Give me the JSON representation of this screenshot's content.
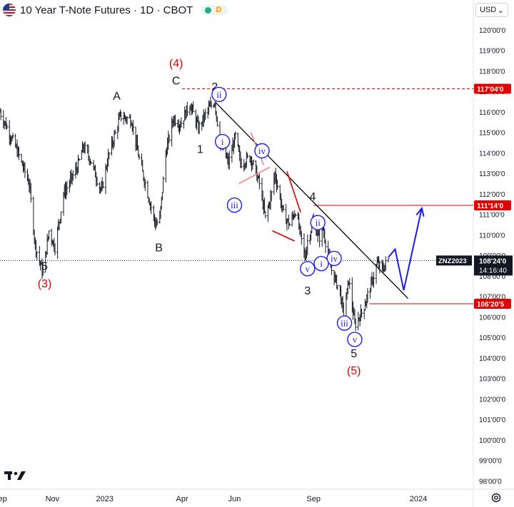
{
  "header": {
    "title": "10 Year T-Note Futures · 1D · CBOT",
    "status_badge": "D"
  },
  "currency_selector": {
    "label": "USD"
  },
  "footer": {
    "logo": "TV"
  },
  "colors": {
    "price_bars": "#131722",
    "wave_red": "#e00000",
    "wave_blue": "#1a1aff",
    "trendline": "#000000",
    "axis_text": "#131722"
  },
  "chart_data": {
    "type": "ohlc",
    "y_axis": {
      "ylim": [
        97.6,
        120.55
      ],
      "ticks": [
        "120'00'0",
        "119'00'0",
        "118'00'0",
        "117'00'0",
        "116'00'0",
        "115'00'0",
        "114'00'0",
        "113'00'0",
        "112'00'0",
        "111'00'0",
        "110'00'0",
        "109'00'0",
        "108'00'0",
        "107'00'0",
        "106'00'0",
        "105'00'0",
        "104'00'0",
        "103'00'0",
        "102'00'0",
        "101'00'0",
        "100'00'0",
        "99'00'0",
        "98'00'0"
      ],
      "tick_values": [
        120,
        119,
        118,
        117,
        116,
        115,
        114,
        113,
        112,
        111,
        110,
        109,
        108,
        107,
        106,
        105,
        104,
        103,
        102,
        101,
        100,
        99,
        98
      ]
    },
    "x_axis": {
      "range": [
        "2022-09-01",
        "2024-03-05"
      ],
      "ticks": [
        {
          "label": "Sep",
          "date": "2022-09-01"
        },
        {
          "label": "Nov",
          "date": "2022-11-01"
        },
        {
          "label": "2023",
          "date": "2023-01-01"
        },
        {
          "label": "Apr",
          "date": "2023-04-01"
        },
        {
          "label": "Jun",
          "date": "2023-06-01"
        },
        {
          "label": "Sep",
          "date": "2023-09-01"
        },
        {
          "label": "2024",
          "date": "2024-01-01"
        }
      ]
    },
    "price_path": [
      [
        "2022-09-01",
        116.0
      ],
      [
        "2022-09-20",
        114.2
      ],
      [
        "2022-10-05",
        112.5
      ],
      [
        "2022-10-12",
        109.5
      ],
      [
        "2022-10-21",
        108.1
      ],
      [
        "2022-10-28",
        110.2
      ],
      [
        "2022-11-04",
        109.4
      ],
      [
        "2022-11-14",
        112.0
      ],
      [
        "2022-11-30",
        113.3
      ],
      [
        "2022-12-07",
        114.3
      ],
      [
        "2022-12-15",
        113.7
      ],
      [
        "2022-12-28",
        112.1
      ],
      [
        "2023-01-05",
        113.8
      ],
      [
        "2023-01-19",
        115.8
      ],
      [
        "2023-02-01",
        115.6
      ],
      [
        "2023-02-10",
        113.7
      ],
      [
        "2023-03-01",
        110.5
      ],
      [
        "2023-03-06",
        110.8
      ],
      [
        "2023-03-13",
        114.0
      ],
      [
        "2023-03-22",
        115.7
      ],
      [
        "2023-03-30",
        115.4
      ],
      [
        "2023-04-10",
        116.4
      ],
      [
        "2023-04-20",
        115.2
      ],
      [
        "2023-05-01",
        116.1
      ],
      [
        "2023-05-09",
        116.5
      ],
      [
        "2023-05-15",
        114.5
      ],
      [
        "2023-05-25",
        113.5
      ],
      [
        "2023-06-02",
        114.8
      ],
      [
        "2023-06-08",
        113.5
      ],
      [
        "2023-06-20",
        113.8
      ],
      [
        "2023-06-30",
        112.5
      ],
      [
        "2023-07-07",
        110.8
      ],
      [
        "2023-07-14",
        112.0
      ],
      [
        "2023-07-18",
        113.0
      ],
      [
        "2023-07-28",
        111.0
      ],
      [
        "2023-08-04",
        110.5
      ],
      [
        "2023-08-11",
        111.2
      ],
      [
        "2023-08-22",
        108.9
      ],
      [
        "2023-08-25",
        109.7
      ],
      [
        "2023-09-01",
        110.7
      ],
      [
        "2023-09-07",
        109.8
      ],
      [
        "2023-09-12",
        110.3
      ],
      [
        "2023-09-21",
        108.4
      ],
      [
        "2023-10-02",
        107.2
      ],
      [
        "2023-10-06",
        106.0
      ],
      [
        "2023-10-12",
        107.8
      ],
      [
        "2023-10-19",
        105.6
      ],
      [
        "2023-10-24",
        106.0
      ],
      [
        "2023-10-27",
        106.2
      ],
      [
        "2023-11-01",
        106.8
      ],
      [
        "2023-11-08",
        107.7
      ],
      [
        "2023-11-14",
        108.6
      ],
      [
        "2023-11-20",
        108.3
      ],
      [
        "2023-11-27",
        108.8
      ]
    ],
    "levels": [
      {
        "value": 117.125,
        "label": "117'04'0",
        "style": "dashed",
        "color": "#e00000",
        "from": "2023-04-01"
      },
      {
        "value": 111.4375,
        "label": "111'14'0",
        "style": "solid",
        "color": "#e00000",
        "from": "2023-09-01"
      },
      {
        "value": 106.640625,
        "label": "106'20'5",
        "style": "solid",
        "color": "#e00000",
        "from": "2023-11-05"
      },
      {
        "value": 108.75,
        "label": "108'24'0",
        "style": "dotted",
        "color": "#131722",
        "from": "2022-09-01"
      }
    ],
    "last_price": {
      "symbol": "ZNZ2023",
      "price": "108'24'0",
      "countdown": "14:16:40",
      "value": 108.75
    },
    "trendlines": [
      {
        "from": [
          "2023-05-09",
          116.5
        ],
        "to": [
          "2023-12-20",
          106.9
        ],
        "color": "#000000"
      }
    ],
    "channels": [
      {
        "points": [
          [
            "2023-06-20",
            115.0
          ],
          [
            "2023-07-05",
            113.4
          ]
        ],
        "color": "#ff8080"
      },
      {
        "points": [
          [
            "2023-06-06",
            112.5
          ],
          [
            "2023-07-12",
            113.3
          ]
        ],
        "color": "#ff8080"
      },
      {
        "points": [
          [
            "2023-08-01",
            113.1
          ],
          [
            "2023-08-17",
            111.1
          ]
        ],
        "color": "#e00000"
      },
      {
        "points": [
          [
            "2023-07-15",
            110.2
          ],
          [
            "2023-08-10",
            109.7
          ]
        ],
        "color": "#e00000"
      }
    ],
    "projection": {
      "points": [
        [
          "2023-11-27",
          108.9
        ],
        [
          "2023-12-05",
          109.3
        ],
        [
          "2023-12-15",
          107.3
        ],
        [
          "2024-01-05",
          111.3
        ]
      ],
      "color": "#1a1aff"
    },
    "wave_labels": [
      {
        "text": "5",
        "x": "2022-10-23",
        "y": 108.5,
        "color": "#131722",
        "style": "plain"
      },
      {
        "text": "(3)",
        "x": "2022-10-23",
        "y": 107.65,
        "color": "#e00000",
        "style": "plain"
      },
      {
        "text": "A",
        "x": "2023-01-15",
        "y": 116.8,
        "color": "#131722",
        "style": "plain"
      },
      {
        "text": "B",
        "x": "2023-03-05",
        "y": 109.4,
        "color": "#131722",
        "style": "plain"
      },
      {
        "text": "C",
        "x": "2023-03-25",
        "y": 117.55,
        "color": "#131722",
        "style": "plain"
      },
      {
        "text": "(4)",
        "x": "2023-03-25",
        "y": 118.4,
        "color": "#e00000",
        "style": "plain"
      },
      {
        "text": "1",
        "x": "2023-04-22",
        "y": 114.2,
        "color": "#131722",
        "style": "plain"
      },
      {
        "text": "2",
        "x": "2023-05-09",
        "y": 117.25,
        "color": "#131722",
        "style": "plain"
      },
      {
        "text": "ii",
        "x": "2023-05-14",
        "y": 116.85,
        "color": "#1a1aff",
        "style": "circle"
      },
      {
        "text": "i",
        "x": "2023-05-18",
        "y": 114.55,
        "color": "#1a1aff",
        "style": "circle"
      },
      {
        "text": "iv",
        "x": "2023-07-03",
        "y": 114.1,
        "color": "#1a1aff",
        "style": "circle"
      },
      {
        "text": "iii",
        "x": "2023-06-01",
        "y": 111.45,
        "color": "#1a1aff",
        "style": "circle"
      },
      {
        "text": "4",
        "x": "2023-08-31",
        "y": 111.9,
        "color": "#131722",
        "style": "plain"
      },
      {
        "text": "ii",
        "x": "2023-09-06",
        "y": 110.6,
        "color": "#1a1aff",
        "style": "circle"
      },
      {
        "text": "iv",
        "x": "2023-09-25",
        "y": 108.85,
        "color": "#1a1aff",
        "style": "circle"
      },
      {
        "text": "i",
        "x": "2023-09-10",
        "y": 108.6,
        "color": "#1a1aff",
        "style": "circle"
      },
      {
        "text": "v",
        "x": "2023-08-25",
        "y": 108.35,
        "color": "#1a1aff",
        "style": "circle"
      },
      {
        "text": "3",
        "x": "2023-08-25",
        "y": 107.3,
        "color": "#131722",
        "style": "plain"
      },
      {
        "text": "iii",
        "x": "2023-10-07",
        "y": 105.7,
        "color": "#1a1aff",
        "style": "circle"
      },
      {
        "text": "v",
        "x": "2023-10-19",
        "y": 104.9,
        "color": "#1a1aff",
        "style": "circle"
      },
      {
        "text": "5",
        "x": "2023-10-18",
        "y": 104.25,
        "color": "#131722",
        "style": "plain"
      },
      {
        "text": "(5)",
        "x": "2023-10-18",
        "y": 103.4,
        "color": "#e00000",
        "style": "plain"
      }
    ]
  }
}
